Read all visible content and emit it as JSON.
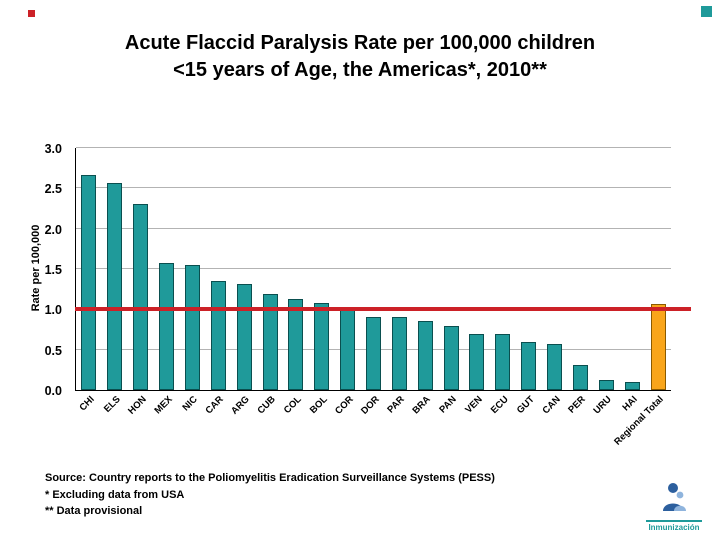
{
  "slide": {
    "title_line1": "Acute Flaccid Paralysis Rate per 100,000 children",
    "title_line2": "<15 years of Age, the Americas*, 2010**"
  },
  "chart_data": {
    "type": "bar",
    "title": "Acute Flaccid Paralysis Rate per 100,000 children <15 years of Age, the Americas*, 2010**",
    "xlabel": "",
    "ylabel": "Rate per 100,000",
    "ylim": [
      0,
      3.0
    ],
    "yticks": [
      0.0,
      0.5,
      1.0,
      1.5,
      2.0,
      2.5,
      3.0
    ],
    "grid": true,
    "categories": [
      "CHI",
      "ELS",
      "HON",
      "MEX",
      "NIC",
      "CAR",
      "ARG",
      "CUB",
      "COL",
      "BOL",
      "COR",
      "DOR",
      "PAR",
      "BRA",
      "PAN",
      "VEN",
      "ECU",
      "GUT",
      "CAN",
      "PER",
      "URU",
      "HAI",
      "Regional Total"
    ],
    "values": [
      2.67,
      2.57,
      2.3,
      1.57,
      1.55,
      1.35,
      1.32,
      1.19,
      1.13,
      1.08,
      1.02,
      0.91,
      0.9,
      0.86,
      0.79,
      0.7,
      0.69,
      0.6,
      0.57,
      0.31,
      0.13,
      0.1,
      1.07
    ],
    "bar_color": "#1f9a9a",
    "highlight_category": "Regional Total",
    "highlight_color": "#f9a51a",
    "target_line": {
      "value": 1.0,
      "color": "#cc2127"
    }
  },
  "footer": {
    "source_line1": "Source: Country reports to the Poliomyelitis Eradication Surveillance Systems (PESS)",
    "source_line2": "* Excluding data from USA",
    "source_line3": "** Data provisional"
  },
  "logo": {
    "label": "Inmunización"
  }
}
